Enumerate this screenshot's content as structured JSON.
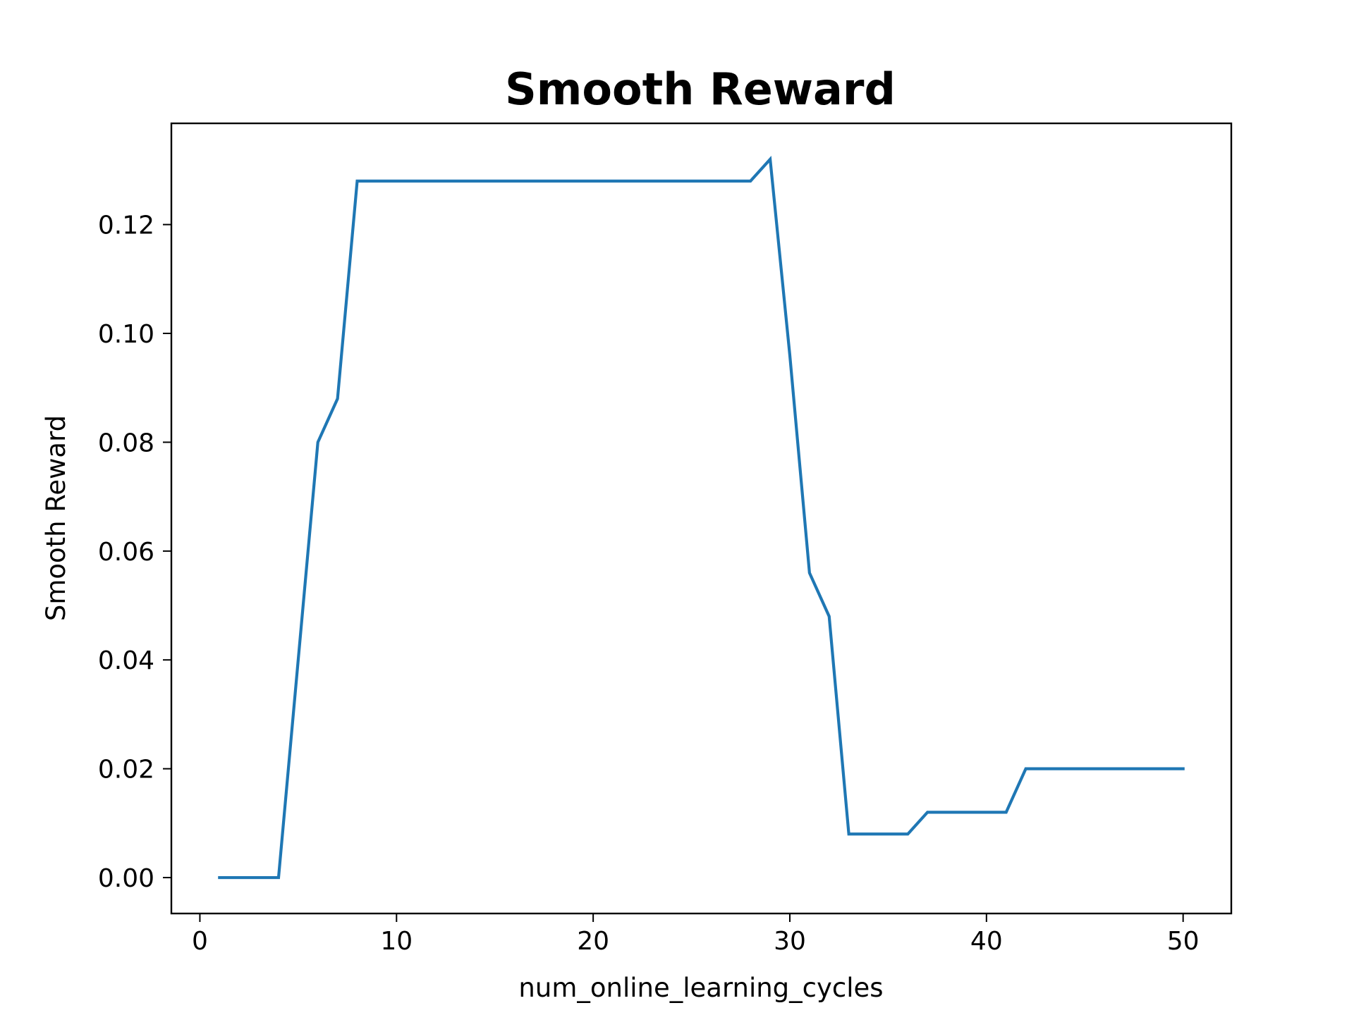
{
  "chart_data": {
    "type": "line",
    "title": "Smooth Reward",
    "xlabel": "num_online_learning_cycles",
    "ylabel": "Smooth Reward",
    "xlim": [
      -1.45,
      52.45
    ],
    "ylim": [
      -0.0066,
      0.1386
    ],
    "x_ticks": [
      0,
      10,
      20,
      30,
      40,
      50
    ],
    "x_tick_labels": [
      "0",
      "10",
      "20",
      "30",
      "40",
      "50"
    ],
    "y_ticks": [
      0.0,
      0.02,
      0.04,
      0.06,
      0.08,
      0.1,
      0.12
    ],
    "y_tick_labels": [
      "0.00",
      "0.02",
      "0.04",
      "0.06",
      "0.08",
      "0.10",
      "0.12"
    ],
    "grid": false,
    "series": [
      {
        "color": "#1f77b4",
        "x": [
          1,
          2,
          3,
          4,
          5,
          6,
          7,
          8,
          9,
          10,
          11,
          12,
          13,
          14,
          15,
          16,
          17,
          18,
          19,
          20,
          21,
          22,
          23,
          24,
          25,
          26,
          27,
          28,
          29,
          30,
          31,
          32,
          33,
          34,
          35,
          36,
          37,
          38,
          39,
          40,
          41,
          42,
          43,
          44,
          45,
          46,
          47,
          48,
          49,
          50
        ],
        "y": [
          0.0,
          0.0,
          0.0,
          0.0,
          0.04,
          0.08,
          0.088,
          0.128,
          0.128,
          0.128,
          0.128,
          0.128,
          0.128,
          0.128,
          0.128,
          0.128,
          0.128,
          0.128,
          0.128,
          0.128,
          0.128,
          0.128,
          0.128,
          0.128,
          0.128,
          0.128,
          0.128,
          0.128,
          0.132,
          0.096,
          0.056,
          0.048,
          0.008,
          0.008,
          0.008,
          0.008,
          0.012,
          0.012,
          0.012,
          0.012,
          0.012,
          0.02,
          0.02,
          0.02,
          0.02,
          0.02,
          0.02,
          0.02,
          0.02,
          0.02
        ]
      }
    ]
  }
}
